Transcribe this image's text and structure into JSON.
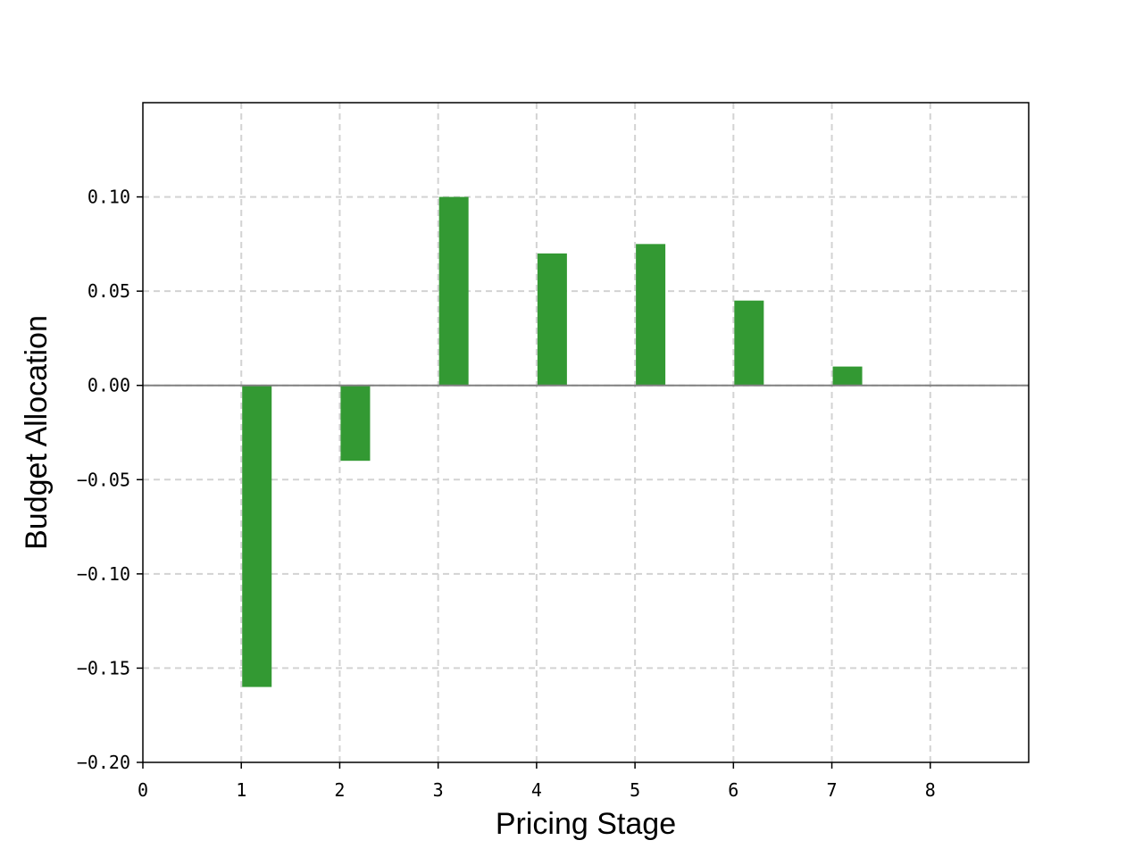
{
  "chart_data": {
    "type": "bar",
    "title": "",
    "xlabel": "Pricing Stage",
    "ylabel": "Budget Allocation",
    "x": [
      1,
      2,
      3,
      4,
      5,
      6,
      7,
      8
    ],
    "values": [
      -0.16,
      -0.04,
      0.1,
      0.07,
      0.075,
      0.045,
      0.01,
      0.0
    ],
    "xlim": [
      0,
      9
    ],
    "ylim": [
      -0.2,
      0.15
    ],
    "xticks": [
      0,
      1,
      2,
      3,
      4,
      5,
      6,
      7,
      8
    ],
    "xtick_labels": [
      "0",
      "1",
      "2",
      "3",
      "4",
      "5",
      "6",
      "7",
      "8"
    ],
    "yticks": [
      -0.2,
      -0.15,
      -0.1,
      -0.05,
      0.0,
      0.05,
      0.1
    ],
    "ytick_labels": [
      "−0.20",
      "−0.15",
      "−0.10",
      "−0.05",
      "0.00",
      "0.05",
      "0.10"
    ],
    "grid": true,
    "grid_style": "dashed",
    "zero_line": true,
    "legend": "none",
    "colors": {
      "bar": "#339933",
      "grid": "#d3d3d3",
      "zero_line": "#808080",
      "axes": "#000000"
    }
  }
}
